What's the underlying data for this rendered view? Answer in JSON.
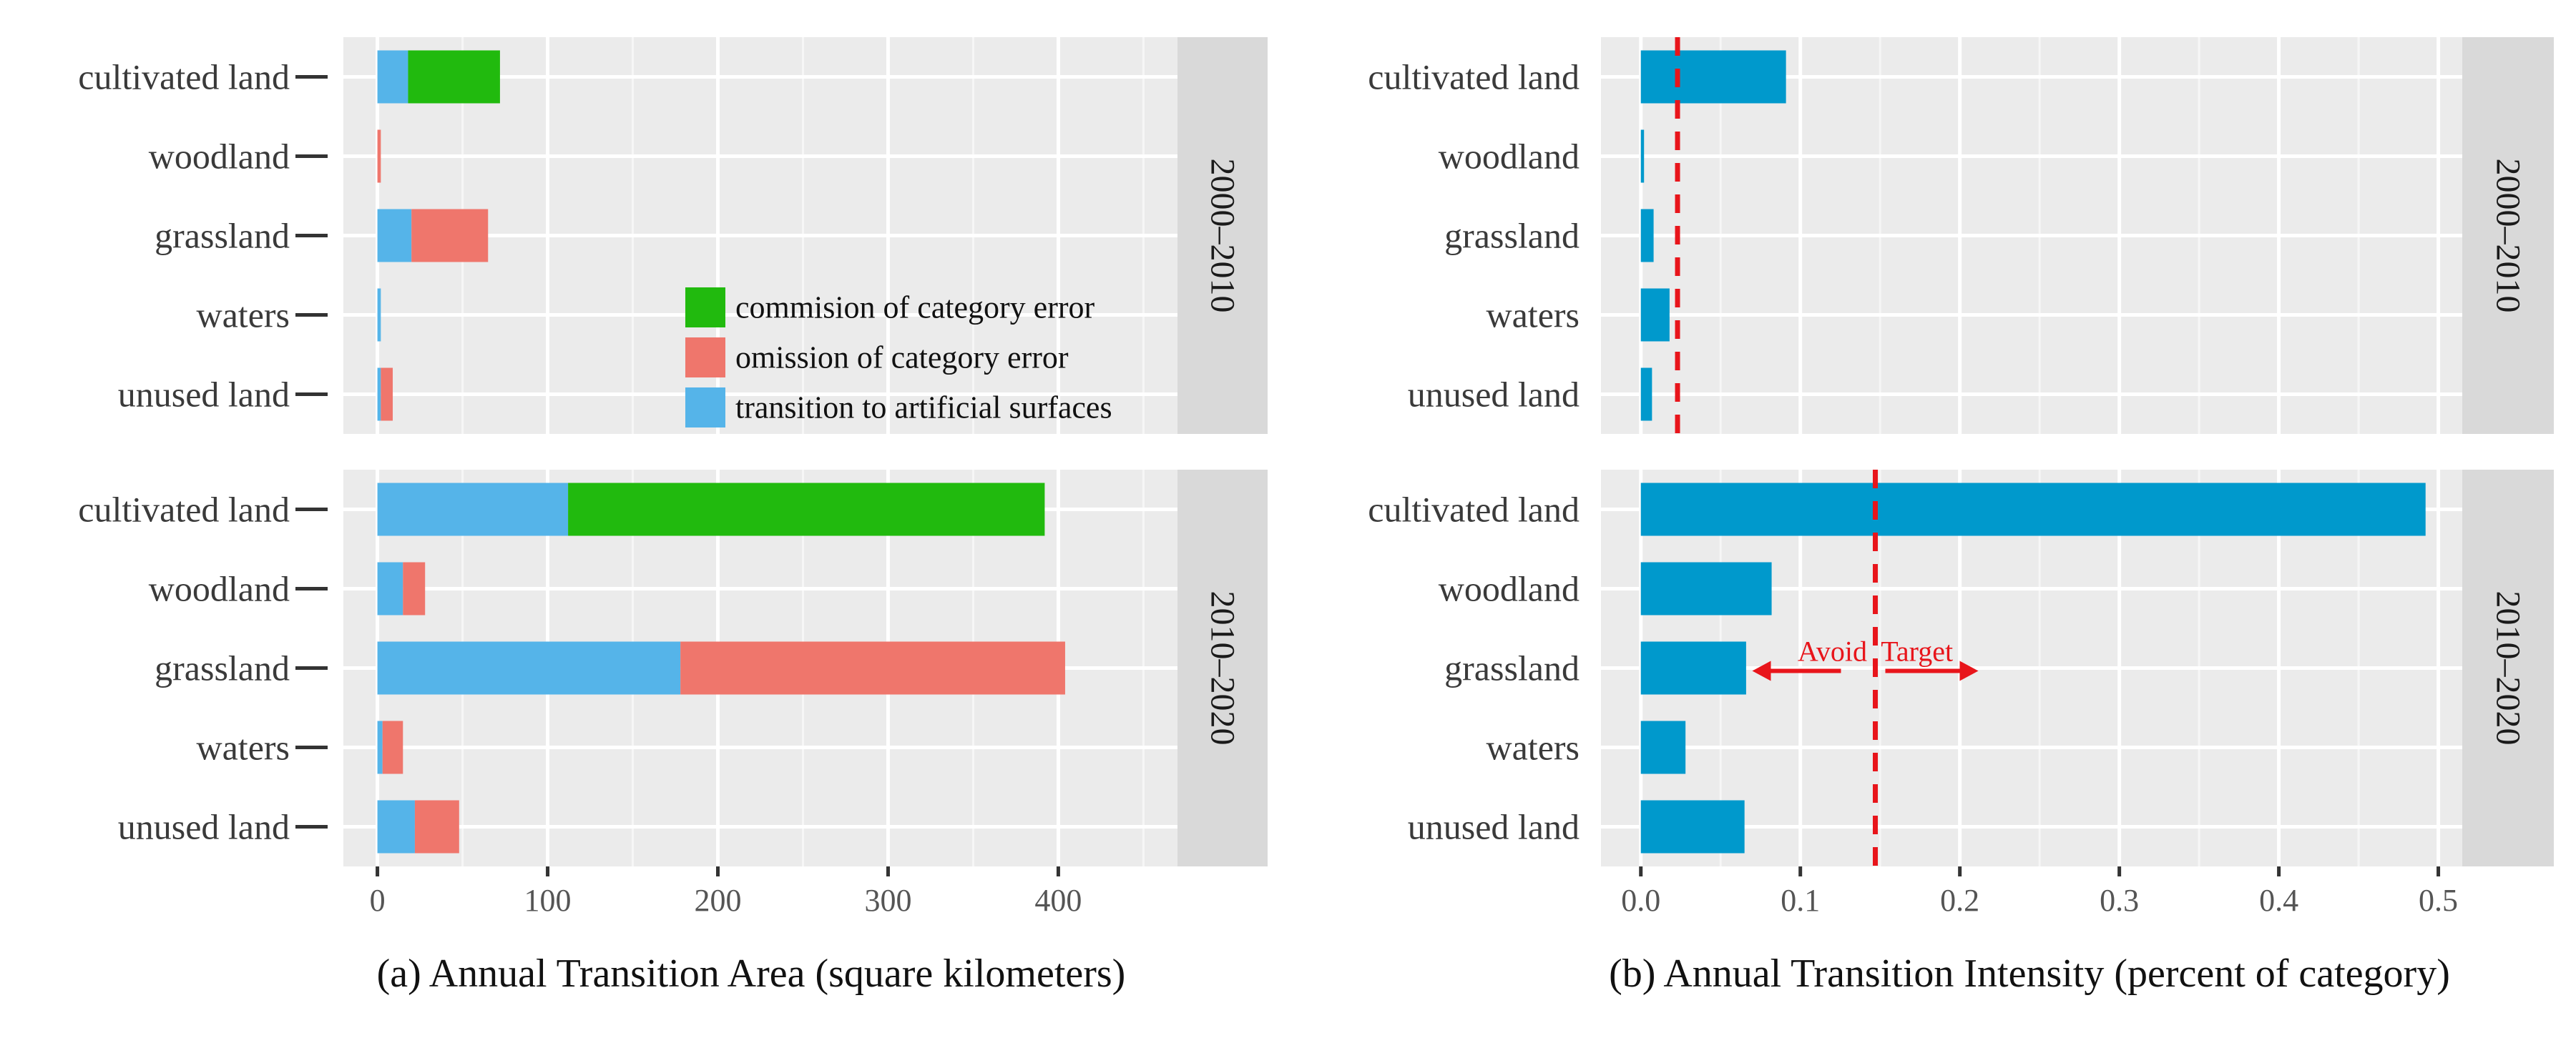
{
  "chart_data": [
    {
      "type": "bar",
      "stacked": true,
      "orientation": "horizontal",
      "xlabel": "(a) Annual Transition Area (square kilometers)",
      "xlim": [
        -20,
        470
      ],
      "xticks": [
        0,
        100,
        200,
        300,
        400
      ],
      "categories": [
        "cultivated land",
        "woodland",
        "grassland",
        "waters",
        "unused land"
      ],
      "legend": {
        "position": "inside-right",
        "entries": [
          {
            "name": "commision of category error",
            "color": "#21BA0E"
          },
          {
            "name": "omission of category error",
            "color": "#EF766C"
          },
          {
            "name": "transition to artificial surfaces",
            "color": "#55B4E9"
          }
        ]
      },
      "facets": [
        {
          "label": "2000–2010",
          "series": [
            {
              "name": "transition to artificial surfaces",
              "values": [
                18,
                0,
                20,
                2,
                2
              ]
            },
            {
              "name": "omission of category error",
              "values": [
                0,
                2,
                45,
                0,
                7
              ]
            },
            {
              "name": "commision of category error",
              "values": [
                54,
                0,
                0,
                0,
                0
              ]
            }
          ]
        },
        {
          "label": "2010–2020",
          "series": [
            {
              "name": "transition to artificial surfaces",
              "values": [
                112,
                15,
                178,
                3,
                22
              ]
            },
            {
              "name": "omission of category error",
              "values": [
                0,
                13,
                226,
                12,
                26
              ]
            },
            {
              "name": "commision of category error",
              "values": [
                280,
                0,
                0,
                0,
                0
              ]
            }
          ]
        }
      ]
    },
    {
      "type": "bar",
      "orientation": "horizontal",
      "xlabel": "(b) Annual Transition Intensity (percent of category)",
      "xlim": [
        -0.025,
        0.515
      ],
      "xticks": [
        0.0,
        0.1,
        0.2,
        0.3,
        0.4,
        0.5
      ],
      "tick_labels": [
        "0.0",
        "0.1",
        "0.2",
        "0.3",
        "0.4",
        "0.5"
      ],
      "categories": [
        "cultivated land",
        "woodland",
        "grassland",
        "waters",
        "unused land"
      ],
      "bar_color": "#0099CC",
      "facets": [
        {
          "label": "2000–2010",
          "values": [
            0.091,
            0.002,
            0.008,
            0.018,
            0.007
          ],
          "uniform_intensity": 0.023
        },
        {
          "label": "2010–2020",
          "values": [
            0.492,
            0.082,
            0.066,
            0.028,
            0.065
          ],
          "uniform_intensity": 0.147,
          "annotation": "Avoid  Target"
        }
      ],
      "reference_line_color": "#E8151B"
    }
  ]
}
